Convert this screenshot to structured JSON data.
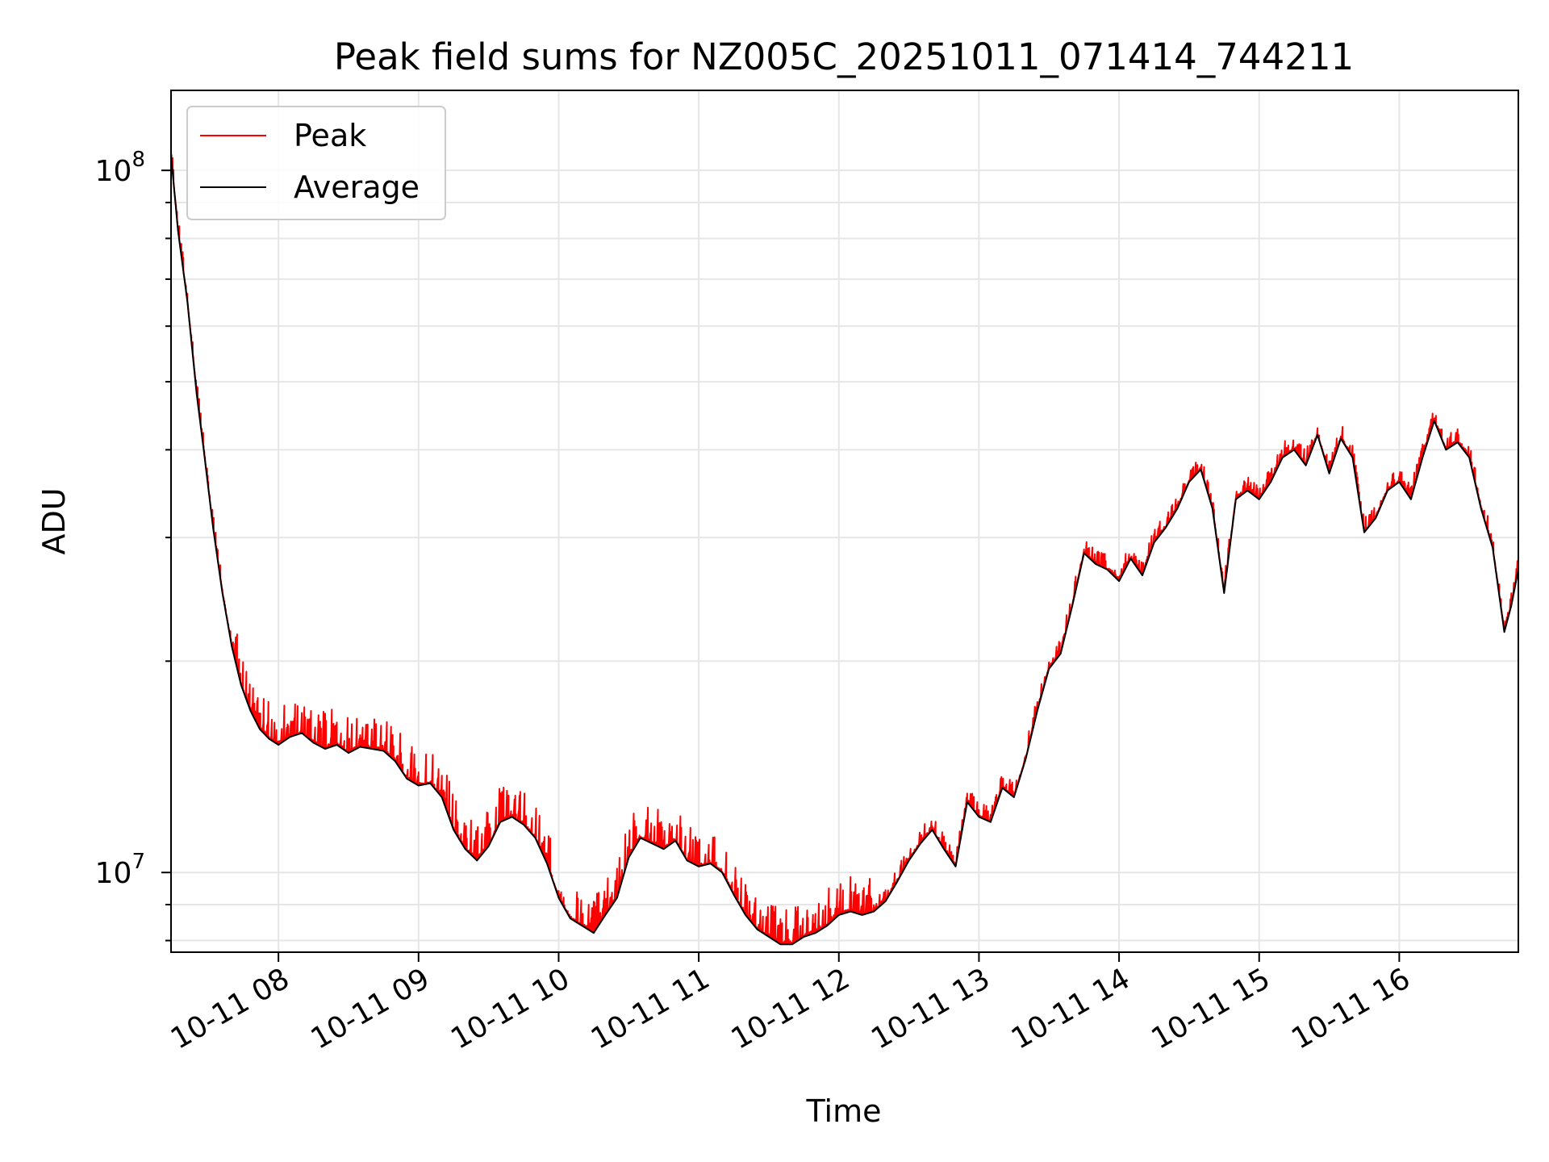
{
  "chart_data": {
    "type": "line",
    "title": "Peak field sums for NZ005C_20251011_071414_744211",
    "xlabel": "Time",
    "ylabel": "ADU",
    "y_scale": "log",
    "ylim": [
      7700000,
      130000000
    ],
    "xlim": [
      "10-11 07:14",
      "10-11 16:51"
    ],
    "grid": true,
    "legend_position": "top-left",
    "x_tick_labels": [
      "10-11 08",
      "10-11 09",
      "10-11 10",
      "10-11 11",
      "10-11 12",
      "10-11 13",
      "10-11 14",
      "10-11 15",
      "10-11 16"
    ],
    "x_tick_times": [
      "10-11 08:00",
      "10-11 09:00",
      "10-11 10:00",
      "10-11 11:00",
      "10-11 12:00",
      "10-11 13:00",
      "10-11 14:00",
      "10-11 15:00",
      "10-11 16:00"
    ],
    "y_major_ticks": [
      {
        "value": 10000000,
        "base": "10",
        "exp": "7"
      },
      {
        "value": 100000000,
        "base": "10",
        "exp": "8"
      }
    ],
    "y_minor_ticks": [
      8000000,
      9000000,
      20000000,
      30000000,
      40000000,
      50000000,
      60000000,
      70000000,
      80000000,
      90000000
    ],
    "series": [
      {
        "name": "Average",
        "color": "#000000",
        "points": [
          [
            "10-11 07:14",
            105000000
          ],
          [
            "10-11 07:17",
            82000000
          ],
          [
            "10-11 07:21",
            65000000
          ],
          [
            "10-11 07:25",
            48000000
          ],
          [
            "10-11 07:28",
            40000000
          ],
          [
            "10-11 07:32",
            31000000
          ],
          [
            "10-11 07:36",
            25000000
          ],
          [
            "10-11 07:40",
            21000000
          ],
          [
            "10-11 07:44",
            18500000
          ],
          [
            "10-11 07:48",
            17000000
          ],
          [
            "10-11 07:52",
            16000000
          ],
          [
            "10-11 07:56",
            15500000
          ],
          [
            "10-11 08:00",
            15200000
          ],
          [
            "10-11 08:05",
            15600000
          ],
          [
            "10-11 08:10",
            15800000
          ],
          [
            "10-11 08:15",
            15300000
          ],
          [
            "10-11 08:20",
            15000000
          ],
          [
            "10-11 08:25",
            15200000
          ],
          [
            "10-11 08:30",
            14800000
          ],
          [
            "10-11 08:35",
            15100000
          ],
          [
            "10-11 08:40",
            15000000
          ],
          [
            "10-11 08:45",
            14900000
          ],
          [
            "10-11 08:50",
            14400000
          ],
          [
            "10-11 08:55",
            13600000
          ],
          [
            "10-11 09:00",
            13300000
          ],
          [
            "10-11 09:05",
            13400000
          ],
          [
            "10-11 09:10",
            12800000
          ],
          [
            "10-11 09:15",
            11500000
          ],
          [
            "10-11 09:20",
            10800000
          ],
          [
            "10-11 09:25",
            10400000
          ],
          [
            "10-11 09:30",
            10900000
          ],
          [
            "10-11 09:35",
            11800000
          ],
          [
            "10-11 09:40",
            12000000
          ],
          [
            "10-11 09:45",
            11700000
          ],
          [
            "10-11 09:50",
            11200000
          ],
          [
            "10-11 09:55",
            10300000
          ],
          [
            "10-11 10:00",
            9200000
          ],
          [
            "10-11 10:05",
            8600000
          ],
          [
            "10-11 10:10",
            8400000
          ],
          [
            "10-11 10:15",
            8200000
          ],
          [
            "10-11 10:20",
            8700000
          ],
          [
            "10-11 10:25",
            9200000
          ],
          [
            "10-11 10:30",
            10500000
          ],
          [
            "10-11 10:35",
            11200000
          ],
          [
            "10-11 10:40",
            11000000
          ],
          [
            "10-11 10:45",
            10800000
          ],
          [
            "10-11 10:50",
            11100000
          ],
          [
            "10-11 10:55",
            10400000
          ],
          [
            "10-11 11:00",
            10200000
          ],
          [
            "10-11 11:05",
            10300000
          ],
          [
            "10-11 11:10",
            10000000
          ],
          [
            "10-11 11:15",
            9300000
          ],
          [
            "10-11 11:20",
            8700000
          ],
          [
            "10-11 11:25",
            8300000
          ],
          [
            "10-11 11:30",
            8100000
          ],
          [
            "10-11 11:35",
            7900000
          ],
          [
            "10-11 11:40",
            7900000
          ],
          [
            "10-11 11:45",
            8100000
          ],
          [
            "10-11 11:50",
            8200000
          ],
          [
            "10-11 11:55",
            8400000
          ],
          [
            "10-11 12:00",
            8700000
          ],
          [
            "10-11 12:05",
            8800000
          ],
          [
            "10-11 12:10",
            8700000
          ],
          [
            "10-11 12:15",
            8800000
          ],
          [
            "10-11 12:20",
            9100000
          ],
          [
            "10-11 12:25",
            9700000
          ],
          [
            "10-11 12:30",
            10400000
          ],
          [
            "10-11 12:35",
            11000000
          ],
          [
            "10-11 12:40",
            11500000
          ],
          [
            "10-11 12:45",
            10800000
          ],
          [
            "10-11 12:50",
            10200000
          ],
          [
            "10-11 12:55",
            12600000
          ],
          [
            "10-11 13:00",
            12000000
          ],
          [
            "10-11 13:05",
            11800000
          ],
          [
            "10-11 13:10",
            13200000
          ],
          [
            "10-11 13:15",
            12800000
          ],
          [
            "10-11 13:20",
            14500000
          ],
          [
            "10-11 13:25",
            17000000
          ],
          [
            "10-11 13:30",
            19500000
          ],
          [
            "10-11 13:35",
            20500000
          ],
          [
            "10-11 13:40",
            24000000
          ],
          [
            "10-11 13:45",
            28500000
          ],
          [
            "10-11 13:50",
            27500000
          ],
          [
            "10-11 13:55",
            27000000
          ],
          [
            "10-11 14:00",
            26000000
          ],
          [
            "10-11 14:05",
            28000000
          ],
          [
            "10-11 14:10",
            26500000
          ],
          [
            "10-11 14:15",
            29500000
          ],
          [
            "10-11 14:20",
            31000000
          ],
          [
            "10-11 14:25",
            33000000
          ],
          [
            "10-11 14:30",
            36000000
          ],
          [
            "10-11 14:35",
            37500000
          ],
          [
            "10-11 14:40",
            33000000
          ],
          [
            "10-11 14:45",
            25000000
          ],
          [
            "10-11 14:50",
            34000000
          ],
          [
            "10-11 14:55",
            35000000
          ],
          [
            "10-11 15:00",
            34000000
          ],
          [
            "10-11 15:05",
            36000000
          ],
          [
            "10-11 15:10",
            39000000
          ],
          [
            "10-11 15:15",
            40000000
          ],
          [
            "10-11 15:20",
            38000000
          ],
          [
            "10-11 15:25",
            42000000
          ],
          [
            "10-11 15:30",
            37000000
          ],
          [
            "10-11 15:35",
            41500000
          ],
          [
            "10-11 15:40",
            39000000
          ],
          [
            "10-11 15:45",
            30500000
          ],
          [
            "10-11 15:50",
            32000000
          ],
          [
            "10-11 15:55",
            35000000
          ],
          [
            "10-11 16:00",
            36000000
          ],
          [
            "10-11 16:05",
            34000000
          ],
          [
            "10-11 16:10",
            39000000
          ],
          [
            "10-11 16:15",
            44000000
          ],
          [
            "10-11 16:20",
            40000000
          ],
          [
            "10-11 16:25",
            41000000
          ],
          [
            "10-11 16:30",
            39000000
          ],
          [
            "10-11 16:35",
            33000000
          ],
          [
            "10-11 16:40",
            29000000
          ],
          [
            "10-11 16:45",
            22000000
          ],
          [
            "10-11 16:48",
            24000000
          ],
          [
            "10-11 16:51",
            27000000
          ]
        ]
      }
    ]
  }
}
